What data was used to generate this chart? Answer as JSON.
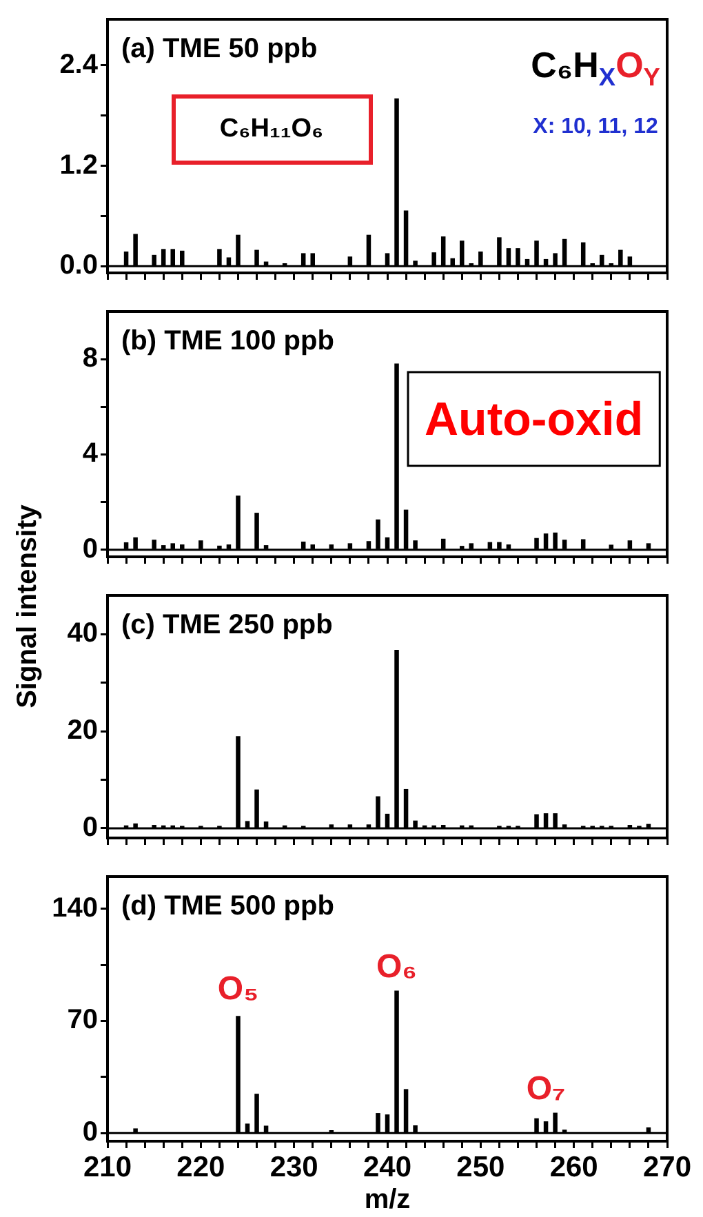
{
  "chart_data": [
    {
      "type": "bar",
      "title": "(a) TME 50 ppb",
      "color": "#000000",
      "legend": false,
      "tick_labels": "y",
      "x": [
        212,
        213,
        215,
        216,
        217,
        218,
        222,
        223,
        224,
        226,
        227,
        229,
        231,
        232,
        236,
        238,
        240,
        241,
        242,
        243,
        245,
        246,
        247,
        248,
        249,
        250,
        252,
        253,
        254,
        255,
        256,
        257,
        258,
        259,
        261,
        262,
        263,
        264,
        265,
        266
      ],
      "values": [
        0.17,
        0.38,
        0.13,
        0.2,
        0.2,
        0.18,
        0.2,
        0.1,
        0.37,
        0.19,
        0.05,
        0.03,
        0.15,
        0.15,
        0.11,
        0.37,
        0.15,
        2.0,
        0.66,
        0.06,
        0.16,
        0.35,
        0.09,
        0.3,
        0.03,
        0.17,
        0.34,
        0.21,
        0.21,
        0.08,
        0.3,
        0.08,
        0.15,
        0.32,
        0.28,
        0.03,
        0.13,
        0.03,
        0.19,
        0.11
      ],
      "xlim": [
        210,
        270
      ],
      "xticks": [
        210,
        {
          "value": 212,
          "label": null
        },
        {
          "value": 214,
          "label": null
        },
        {
          "value": 216,
          "label": null
        },
        {
          "value": 218,
          "label": null
        },
        220,
        {
          "value": 222,
          "label": null
        },
        {
          "value": 224,
          "label": null
        },
        {
          "value": 226,
          "label": null
        },
        {
          "value": 228,
          "label": null
        },
        230,
        {
          "value": 232,
          "label": null
        },
        {
          "value": 234,
          "label": null
        },
        {
          "value": 236,
          "label": null
        },
        {
          "value": 238,
          "label": null
        },
        240,
        {
          "value": 242,
          "label": null
        },
        {
          "value": 244,
          "label": null
        },
        {
          "value": 246,
          "label": null
        },
        {
          "value": 248,
          "label": null
        },
        250,
        {
          "value": 252,
          "label": null
        },
        {
          "value": 254,
          "label": null
        },
        {
          "value": 256,
          "label": null
        },
        {
          "value": 258,
          "label": null
        },
        260,
        {
          "value": 262,
          "label": null
        },
        {
          "value": 264,
          "label": null
        },
        {
          "value": 266,
          "label": null
        },
        {
          "value": 268,
          "label": null
        },
        270
      ],
      "ylim": [
        -0.08,
        2.95
      ],
      "yticks": [
        {
          "value": 0,
          "label": "0.0"
        },
        {
          "value": 0.6,
          "label": null
        },
        1.2,
        {
          "value": 1.8,
          "label": null
        },
        2.4
      ],
      "ref_lines": [
        {
          "axis": "y",
          "value": 0
        }
      ],
      "annotations": [
        "C₆H₁₁O₆",
        "C₆H$_{X}$O$_{Y}$",
        "X: 10, 11, 12"
      ]
    },
    {
      "type": "bar",
      "title": "(b) TME 100 ppb",
      "color": "#000000",
      "legend": false,
      "tick_labels": "y",
      "x": [
        212,
        213,
        215,
        216,
        217,
        218,
        220,
        222,
        223,
        224,
        226,
        227,
        231,
        232,
        234,
        236,
        238,
        239,
        240,
        241,
        242,
        243,
        246,
        248,
        249,
        251,
        252,
        253,
        256,
        257,
        258,
        259,
        261,
        264,
        266,
        268
      ],
      "values": [
        0.29,
        0.5,
        0.4,
        0.17,
        0.25,
        0.2,
        0.37,
        0.15,
        0.2,
        2.25,
        1.53,
        0.17,
        0.32,
        0.2,
        0.2,
        0.25,
        0.34,
        1.25,
        0.5,
        7.8,
        1.66,
        0.37,
        0.44,
        0.14,
        0.25,
        0.3,
        0.3,
        0.2,
        0.47,
        0.66,
        0.7,
        0.4,
        0.42,
        0.19,
        0.37,
        0.25
      ],
      "xlim": [
        210,
        270
      ],
      "xticks": [
        210,
        {
          "value": 212,
          "label": null
        },
        {
          "value": 214,
          "label": null
        },
        {
          "value": 216,
          "label": null
        },
        {
          "value": 218,
          "label": null
        },
        220,
        {
          "value": 222,
          "label": null
        },
        {
          "value": 224,
          "label": null
        },
        {
          "value": 226,
          "label": null
        },
        {
          "value": 228,
          "label": null
        },
        230,
        {
          "value": 232,
          "label": null
        },
        {
          "value": 234,
          "label": null
        },
        {
          "value": 236,
          "label": null
        },
        {
          "value": 238,
          "label": null
        },
        240,
        {
          "value": 242,
          "label": null
        },
        {
          "value": 244,
          "label": null
        },
        {
          "value": 246,
          "label": null
        },
        {
          "value": 248,
          "label": null
        },
        250,
        {
          "value": 252,
          "label": null
        },
        {
          "value": 254,
          "label": null
        },
        {
          "value": 256,
          "label": null
        },
        {
          "value": 258,
          "label": null
        },
        260,
        {
          "value": 262,
          "label": null
        },
        {
          "value": 264,
          "label": null
        },
        {
          "value": 266,
          "label": null
        },
        {
          "value": 268,
          "label": null
        },
        270
      ],
      "ylim": [
        -0.3,
        10
      ],
      "yticks": [
        0,
        {
          "value": 2,
          "label": null
        },
        4,
        {
          "value": 6,
          "label": null
        },
        8
      ],
      "ref_lines": [
        {
          "axis": "y",
          "value": 0
        }
      ],
      "annotations": [
        "Auto-oxid"
      ]
    },
    {
      "type": "bar",
      "title": "(c) TME 250 ppb",
      "ylabel": "Signal intensity",
      "color": "#000000",
      "legend": false,
      "tick_labels": "y",
      "x": [
        212,
        213,
        215,
        216,
        217,
        218,
        220,
        222,
        224,
        225,
        226,
        227,
        229,
        231,
        234,
        236,
        238,
        239,
        240,
        241,
        242,
        243,
        244,
        245,
        246,
        248,
        249,
        252,
        253,
        254,
        256,
        257,
        258,
        259,
        261,
        262,
        263,
        264,
        266,
        267,
        268
      ],
      "values": [
        0.5,
        0.9,
        0.6,
        0.5,
        0.5,
        0.4,
        0.4,
        0.4,
        18.9,
        1.4,
        7.9,
        1.3,
        0.5,
        0.4,
        0.7,
        0.7,
        0.7,
        6.5,
        2.9,
        36.7,
        8.0,
        1.5,
        0.5,
        0.5,
        0.6,
        0.5,
        0.5,
        0.4,
        0.4,
        0.4,
        2.8,
        3.0,
        3.0,
        0.7,
        0.4,
        0.4,
        0.4,
        0.4,
        0.6,
        0.4,
        0.8
      ],
      "xlim": [
        210,
        270
      ],
      "xticks": [
        210,
        {
          "value": 212,
          "label": null
        },
        {
          "value": 214,
          "label": null
        },
        {
          "value": 216,
          "label": null
        },
        {
          "value": 218,
          "label": null
        },
        220,
        {
          "value": 222,
          "label": null
        },
        {
          "value": 224,
          "label": null
        },
        {
          "value": 226,
          "label": null
        },
        {
          "value": 228,
          "label": null
        },
        230,
        {
          "value": 232,
          "label": null
        },
        {
          "value": 234,
          "label": null
        },
        {
          "value": 236,
          "label": null
        },
        {
          "value": 238,
          "label": null
        },
        240,
        {
          "value": 242,
          "label": null
        },
        {
          "value": 244,
          "label": null
        },
        {
          "value": 246,
          "label": null
        },
        {
          "value": 248,
          "label": null
        },
        250,
        {
          "value": 252,
          "label": null
        },
        {
          "value": 254,
          "label": null
        },
        {
          "value": 256,
          "label": null
        },
        {
          "value": 258,
          "label": null
        },
        260,
        {
          "value": 262,
          "label": null
        },
        {
          "value": 264,
          "label": null
        },
        {
          "value": 266,
          "label": null
        },
        {
          "value": 268,
          "label": null
        },
        270
      ],
      "ylim": [
        -2,
        48
      ],
      "yticks": [
        0,
        {
          "value": 10,
          "label": null
        },
        20,
        {
          "value": 30,
          "label": null
        },
        40
      ],
      "ref_lines": [
        {
          "axis": "y",
          "value": 0
        }
      ]
    },
    {
      "type": "bar",
      "title": "(d) TME 500 ppb",
      "xlabel": "m/z",
      "color": "#000000",
      "legend": false,
      "x": [
        213,
        224,
        225,
        226,
        227,
        234,
        239,
        240,
        241,
        242,
        243,
        256,
        257,
        258,
        259,
        268
      ],
      "values": [
        2.7,
        72.8,
        5.7,
        24.3,
        4.4,
        1.6,
        12.3,
        11.4,
        88.6,
        27.2,
        4.6,
        9.0,
        7.1,
        12.5,
        1.9,
        3.3
      ],
      "xlim": [
        210,
        270
      ],
      "xticks": [
        210,
        {
          "value": 212,
          "label": null
        },
        {
          "value": 214,
          "label": null
        },
        {
          "value": 216,
          "label": null
        },
        {
          "value": 218,
          "label": null
        },
        220,
        {
          "value": 222,
          "label": null
        },
        {
          "value": 224,
          "label": null
        },
        {
          "value": 226,
          "label": null
        },
        {
          "value": 228,
          "label": null
        },
        230,
        {
          "value": 232,
          "label": null
        },
        {
          "value": 234,
          "label": null
        },
        {
          "value": 236,
          "label": null
        },
        {
          "value": 238,
          "label": null
        },
        240,
        {
          "value": 242,
          "label": null
        },
        {
          "value": 244,
          "label": null
        },
        {
          "value": 246,
          "label": null
        },
        {
          "value": 248,
          "label": null
        },
        250,
        {
          "value": 252,
          "label": null
        },
        {
          "value": 254,
          "label": null
        },
        {
          "value": 256,
          "label": null
        },
        {
          "value": 258,
          "label": null
        },
        260,
        {
          "value": 262,
          "label": null
        },
        {
          "value": 264,
          "label": null
        },
        {
          "value": 266,
          "label": null
        },
        {
          "value": 268,
          "label": null
        },
        270
      ],
      "ylim": [
        -5,
        160
      ],
      "yticks": [
        0,
        {
          "value": 35,
          "label": null
        },
        70,
        {
          "value": 105,
          "label": null
        },
        140
      ],
      "ref_lines": [
        {
          "axis": "y",
          "value": 0
        }
      ],
      "annotations": [
        "O₅",
        "O₆",
        "O₇"
      ]
    }
  ]
}
